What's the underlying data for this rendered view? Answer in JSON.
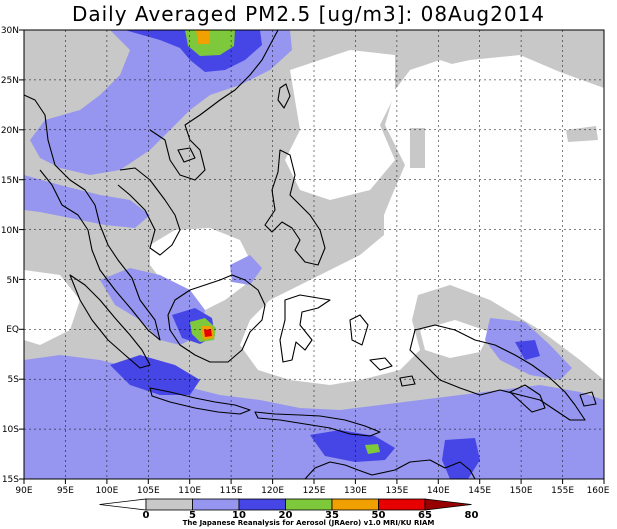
{
  "title": "Daily Averaged PM2.5 [ug/m3]: 08Aug2014",
  "footer": "The Japanese Reanalysis for Aerosol (JRAero) v1.0 MRI/KU RIAM",
  "lat_ticks": [
    "30N",
    "25N",
    "20N",
    "15N",
    "10N",
    "5N",
    "EQ",
    "5S",
    "10S",
    "15S"
  ],
  "lon_ticks": [
    "90E",
    "95E",
    "100E",
    "105E",
    "110E",
    "115E",
    "120E",
    "125E",
    "130E",
    "135E",
    "140E",
    "145E",
    "150E",
    "155E",
    "160E"
  ],
  "map_extent": {
    "lon_min": 90,
    "lon_max": 160,
    "lat_min": -15,
    "lat_max": 30
  },
  "colorbar": {
    "levels": [
      "0",
      "5",
      "10",
      "20",
      "35",
      "50",
      "65",
      "80"
    ],
    "colors": [
      "#ffffff",
      "#c8c8c8",
      "#9696f0",
      "#4646e6",
      "#7ec83c",
      "#f0a000",
      "#e60000",
      "#960000"
    ]
  }
}
